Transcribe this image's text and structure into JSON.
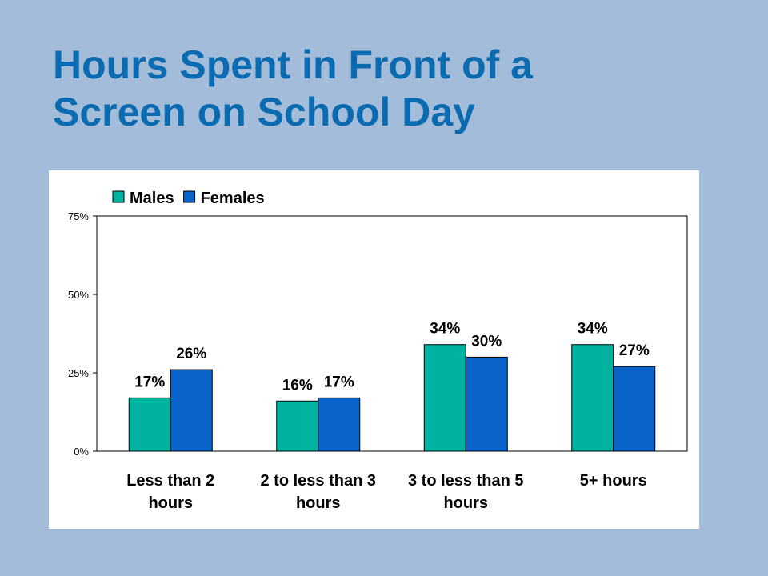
{
  "slide": {
    "title_line1": "Hours Spent in Front of a",
    "title_line2": "Screen on School Day"
  },
  "colors": {
    "background": "#a3bcd9",
    "title": "#0b6bb0",
    "males": "#00b3a1",
    "females": "#0a63c9"
  },
  "chart_data": {
    "type": "bar",
    "title": "",
    "xlabel": "",
    "ylabel": "",
    "ylim": [
      0,
      75
    ],
    "yticks": [
      0,
      25,
      50,
      75
    ],
    "ytick_labels": [
      "0%",
      "25%",
      "50%",
      "75%"
    ],
    "grid": false,
    "legend": "top-left",
    "categories": [
      [
        "Less than 2",
        "hours"
      ],
      [
        "2 to less than 3",
        "hours"
      ],
      [
        "3 to less than 5",
        "hours"
      ],
      [
        "5+ hours"
      ]
    ],
    "series": [
      {
        "name": "Males",
        "color": "#00b3a1",
        "values": [
          17,
          16,
          34,
          34
        ],
        "labels": [
          "17%",
          "16%",
          "34%",
          "34%"
        ]
      },
      {
        "name": "Females",
        "color": "#0a63c9",
        "values": [
          26,
          17,
          30,
          27
        ],
        "labels": [
          "26%",
          "17%",
          "30%",
          "27%"
        ]
      }
    ]
  }
}
